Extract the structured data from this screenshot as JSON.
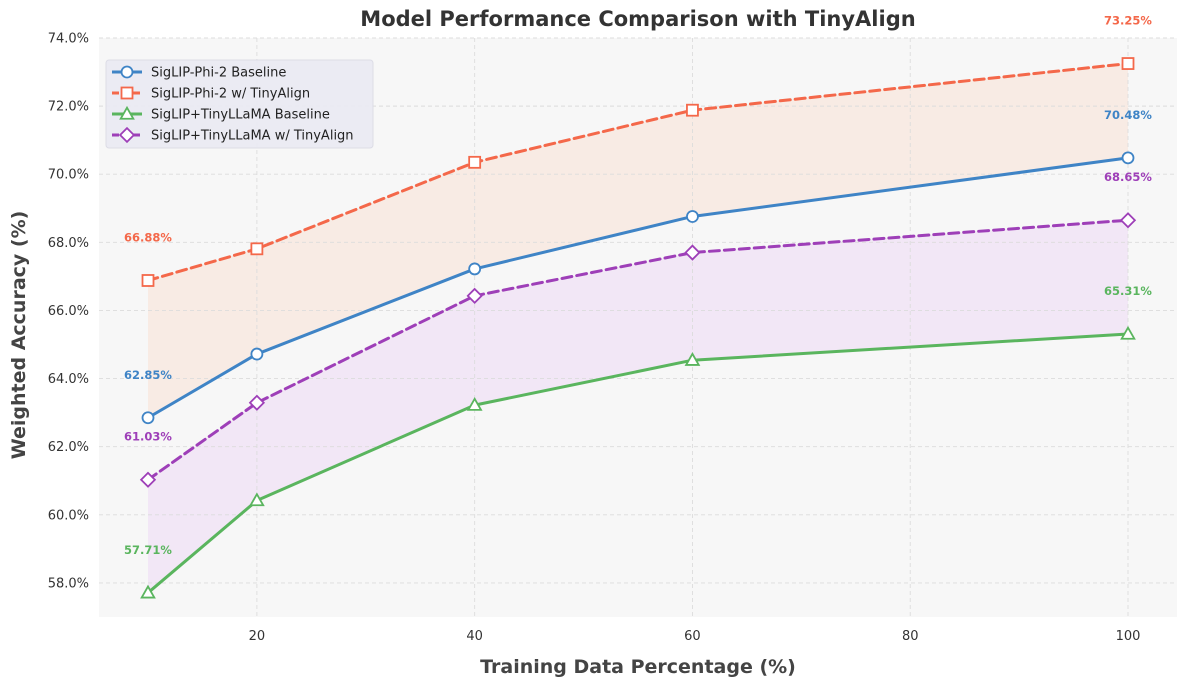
{
  "chart_data": {
    "type": "line",
    "title": "Model Performance Comparison with TinyAlign",
    "xlabel": "Training Data Percentage (%)",
    "ylabel": "Weighted Accuracy (%)",
    "xlim": [
      5.5,
      104.5
    ],
    "ylim": [
      57.0,
      74.0
    ],
    "x": [
      10,
      20,
      40,
      60,
      100
    ],
    "x_ticks": [
      20,
      40,
      60,
      80,
      100
    ],
    "x_tick_labels": [
      "20",
      "40",
      "60",
      "80",
      "100"
    ],
    "y_ticks": [
      58,
      60,
      62,
      64,
      66,
      68,
      70,
      72,
      74
    ],
    "y_tick_labels": [
      "58.0%",
      "60.0%",
      "62.0%",
      "64.0%",
      "66.0%",
      "68.0%",
      "70.0%",
      "72.0%",
      "74.0%"
    ],
    "grid": true,
    "legend_position": "top-left",
    "series": [
      {
        "name": "SigLIP-Phi-2 Baseline",
        "values": [
          62.85,
          64.72,
          67.22,
          68.76,
          70.48
        ],
        "color": "#3f84c6",
        "dash": "solid",
        "marker": "circle"
      },
      {
        "name": "SigLIP-Phi-2 w/ TinyAlign",
        "values": [
          66.88,
          67.81,
          70.35,
          71.88,
          73.25
        ],
        "color": "#f4684a",
        "dash": "dashed",
        "marker": "square"
      },
      {
        "name": "SigLIP+TinyLLaMA Baseline",
        "values": [
          57.71,
          60.42,
          63.22,
          64.54,
          65.31
        ],
        "color": "#5ab55e",
        "dash": "solid",
        "marker": "triangle"
      },
      {
        "name": "SigLIP+TinyLLaMA w/ TinyAlign",
        "values": [
          61.03,
          63.29,
          66.43,
          67.7,
          68.65
        ],
        "color": "#9e3fb8",
        "dash": "dashed",
        "marker": "diamond"
      }
    ],
    "fills": [
      {
        "between": [
          0,
          1
        ],
        "color": "#f9dccd"
      },
      {
        "between": [
          2,
          3
        ],
        "color": "#ecd3f3"
      }
    ],
    "annotations": [
      {
        "series": 1,
        "point": "first",
        "text": "66.88%"
      },
      {
        "series": 1,
        "point": "last",
        "text": "73.25%"
      },
      {
        "series": 0,
        "point": "first",
        "text": "62.85%"
      },
      {
        "series": 0,
        "point": "last",
        "text": "70.48%"
      },
      {
        "series": 3,
        "point": "first",
        "text": "61.03%"
      },
      {
        "series": 3,
        "point": "last",
        "text": "68.65%"
      },
      {
        "series": 2,
        "point": "first",
        "text": "57.71%"
      },
      {
        "series": 2,
        "point": "last",
        "text": "65.31%"
      }
    ]
  }
}
